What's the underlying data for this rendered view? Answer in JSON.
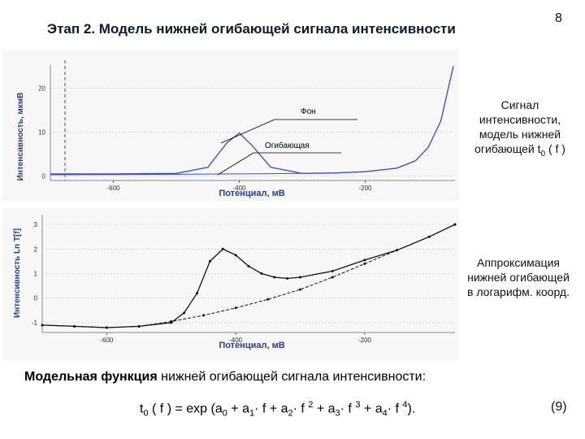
{
  "slide": {
    "title": "Этап 2. Модель нижней огибающей сигнала интенсивности",
    "page_number": "8",
    "caption_top": [
      "Сигнал",
      "интенсивности,",
      "модель нижней",
      "огибающей  t"
    ],
    "caption_top_sub": "0",
    "caption_top_tail": " ( f )",
    "caption_bottom": [
      "Аппроксимация",
      "нижней огибающей",
      "в логарифм. коорд."
    ],
    "model_bold": "Модельная функция",
    "model_rest": " нижней огибающей сигнала интенсивности:",
    "formula": {
      "t": "t",
      "t_sub": "0",
      "open": " ( f ) = exp (a",
      "a0": "0",
      "p1": " + a",
      "a1": "1",
      "f1": "· f  + a",
      "a2": "2",
      "f2": "· f ",
      "e2": "2",
      "p3": "  + a",
      "a3": "3",
      "f3": "· f ",
      "e3": "3",
      "p4": "  + a",
      "a4": "4",
      "f4": "· f ",
      "e4": "4",
      "close": ")."
    },
    "equation_number": "(9)"
  },
  "chart_top": {
    "ylabel": "Интенсивность, мкмВ",
    "xlabel": "Потенциал, мВ",
    "yticks": [
      "20",
      "10",
      "0"
    ],
    "xticks": [
      "-600",
      "-400",
      "-200"
    ],
    "label_fon": "Фон",
    "label_env": "Огибающая",
    "curve_color": "#3a4fc8"
  },
  "chart_bottom": {
    "ylabel": "Интенсивность Ln T[f]",
    "xlabel": "Потенциал, мВ",
    "yticks": [
      "3",
      "2",
      "1",
      "0",
      "-1"
    ],
    "xticks": [
      "-600",
      "-400",
      "-200"
    ],
    "curve_color": "#111111"
  },
  "chart_data": [
    {
      "type": "line",
      "xlabel": "Потенциал, мВ",
      "ylabel": "Интенсивность, мкмВ",
      "xlim": [
        -700,
        -60
      ],
      "ylim": [
        -1,
        26
      ],
      "series": [
        {
          "name": "Сигнал",
          "x": [
            -700,
            -600,
            -500,
            -450,
            -420,
            -400,
            -380,
            -350,
            -300,
            -250,
            -200,
            -150,
            -120,
            -100,
            -80,
            -60
          ],
          "y": [
            0.5,
            0.5,
            0.6,
            2.0,
            7.5,
            9.8,
            7.0,
            2.0,
            0.6,
            0.7,
            1.0,
            1.8,
            3.5,
            6.5,
            12.5,
            25
          ]
        },
        {
          "name": "Огибающая",
          "x": [
            -700,
            -600,
            -500,
            -400,
            -350,
            -300,
            -250,
            -200,
            -150,
            -120,
            -100,
            -80,
            -60
          ],
          "y": [
            0.3,
            0.35,
            0.4,
            0.5,
            0.55,
            0.6,
            0.7,
            1.0,
            1.8,
            3.5,
            6.5,
            12.5,
            25
          ]
        }
      ]
    },
    {
      "type": "line",
      "xlabel": "Потенциал, мВ",
      "ylabel": "Интенсивность Ln T[f]",
      "xlim": [
        -700,
        -60
      ],
      "ylim": [
        -1.4,
        3.4
      ],
      "series": [
        {
          "x": [
            -700,
            -650,
            -600,
            -550,
            -500,
            -480,
            -460,
            -440,
            -420,
            -400,
            -380,
            -360,
            -340,
            -320,
            -300,
            -250,
            -200,
            -150,
            -100,
            -60
          ],
          "y": [
            -1.1,
            -1.15,
            -1.2,
            -1.15,
            -1.0,
            -0.6,
            0.2,
            1.5,
            2.0,
            1.75,
            1.3,
            1.0,
            0.85,
            0.8,
            0.85,
            1.1,
            1.55,
            1.95,
            2.5,
            3.0
          ]
        },
        {
          "x": [
            -700,
            -650,
            -600,
            -550,
            -500,
            -450,
            -400,
            -350,
            -300,
            -250,
            -200,
            -150,
            -100,
            -60
          ],
          "y": [
            -1.1,
            -1.15,
            -1.2,
            -1.15,
            -0.95,
            -0.7,
            -0.4,
            -0.05,
            0.35,
            0.85,
            1.4,
            1.95,
            2.5,
            3.0
          ]
        }
      ]
    }
  ]
}
